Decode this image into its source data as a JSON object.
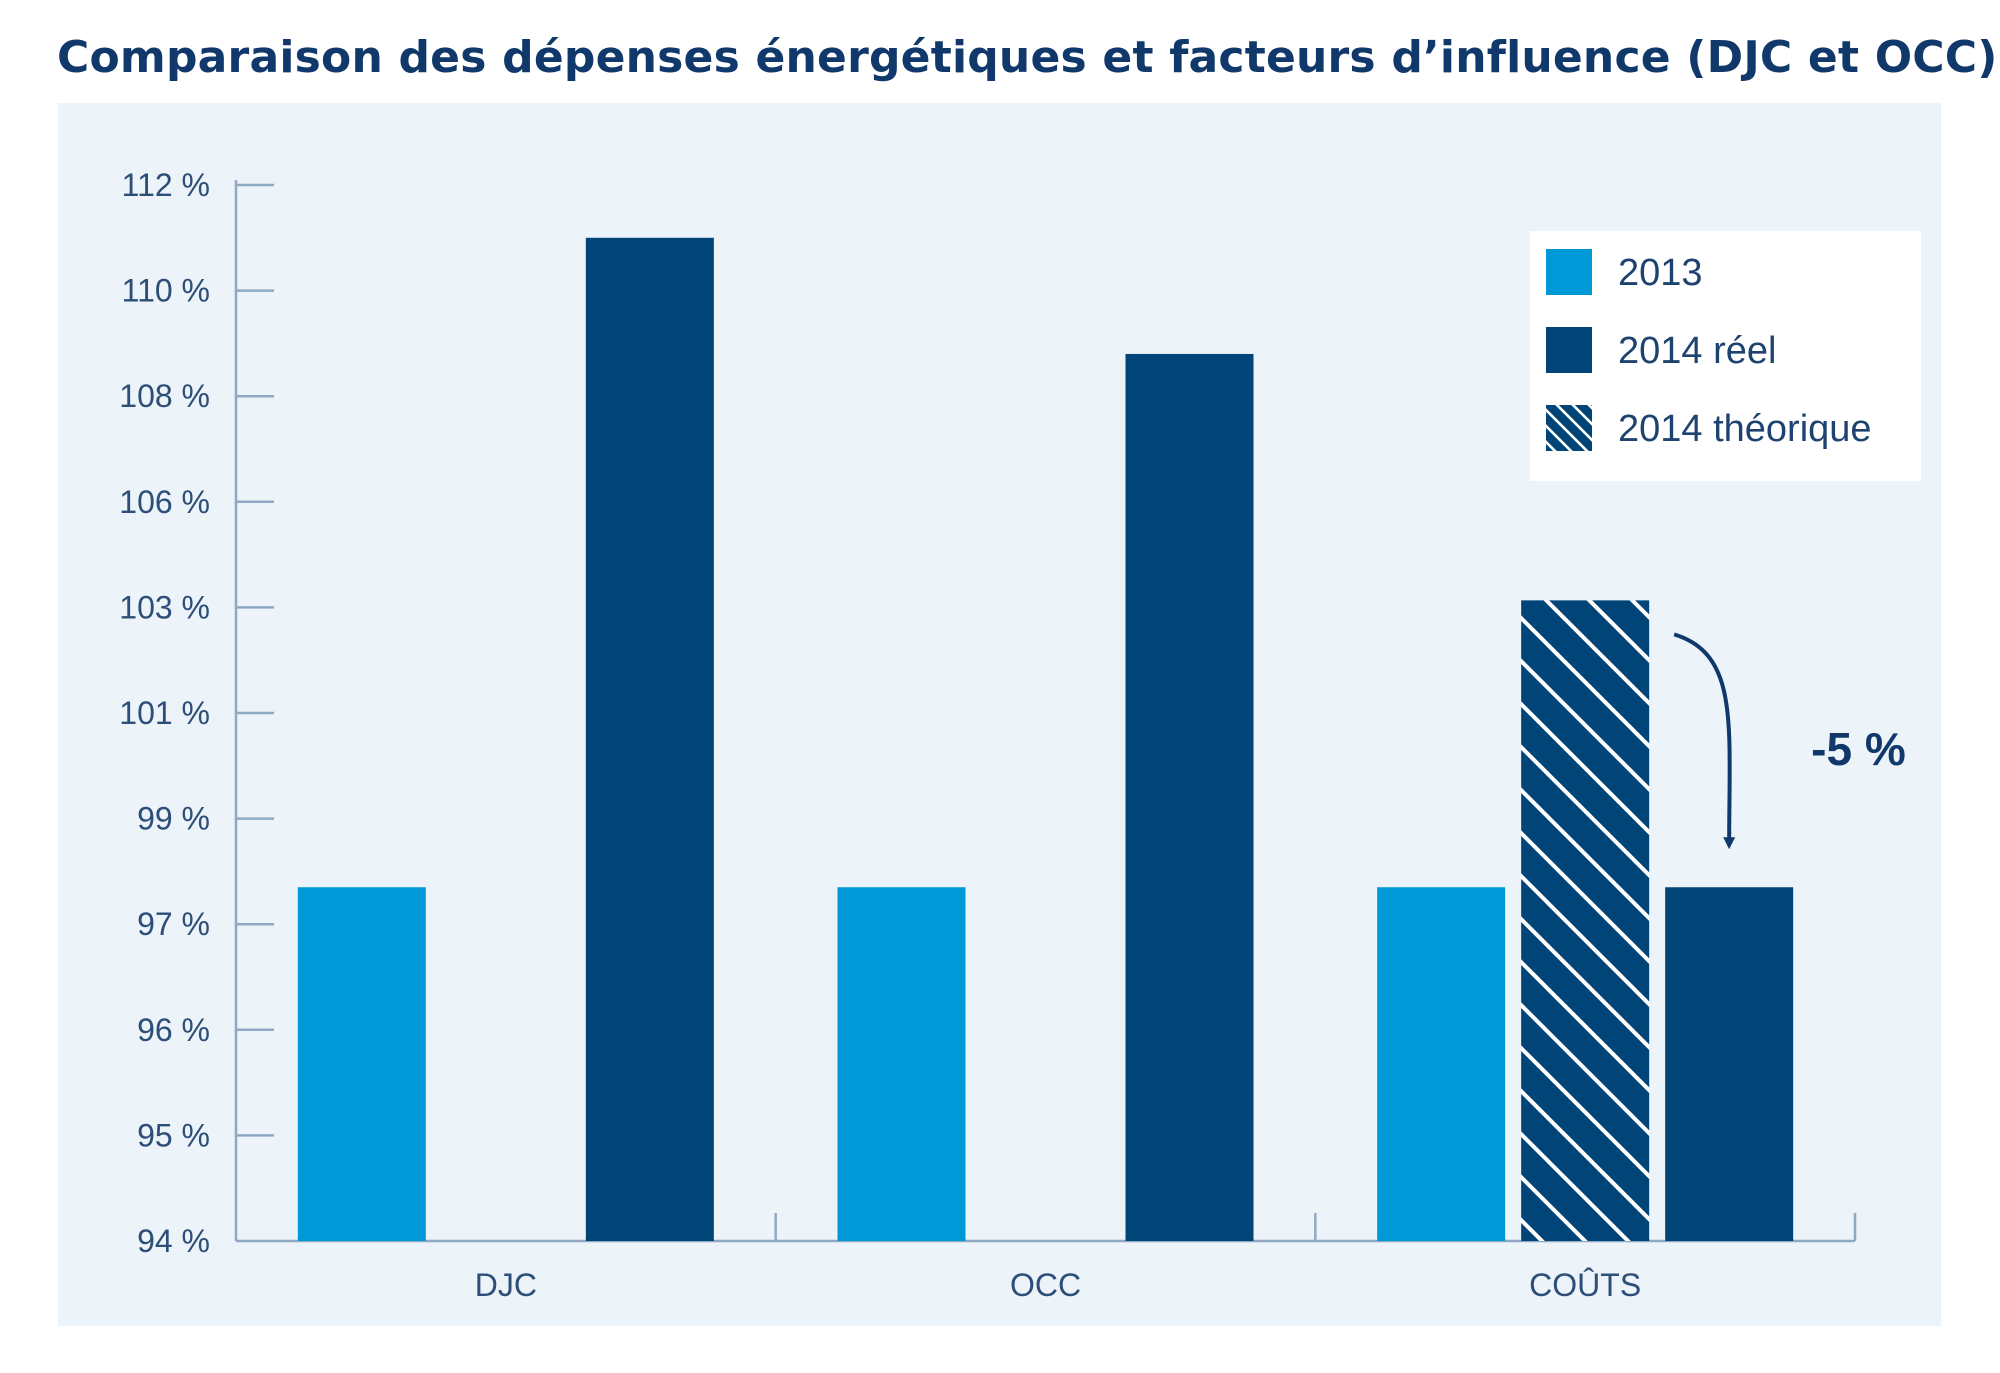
{
  "chart_data": {
    "type": "bar",
    "title": "Comparaison des dépenses énergétiques et facteurs d’influence (DJC et OCC)",
    "categories": [
      "DJC",
      "OCC",
      "COÛTS"
    ],
    "y_ticks": [
      {
        "label": "94 %",
        "value": 94
      },
      {
        "label": "95 %",
        "value": 95
      },
      {
        "label": "96 %",
        "value": 96
      },
      {
        "label": "97 %",
        "value": 97
      },
      {
        "label": "99 %",
        "value": 99
      },
      {
        "label": "101 %",
        "value": 101
      },
      {
        "label": "103 %",
        "value": 103
      },
      {
        "label": "106 %",
        "value": 106
      },
      {
        "label": "108 %",
        "value": 108
      },
      {
        "label": "110 %",
        "value": 110
      },
      {
        "label": "112 %",
        "value": 112
      }
    ],
    "series": [
      {
        "name": "2013",
        "color": "#0099d8",
        "pattern": "solid",
        "values": [
          97.7,
          97.7,
          97.7
        ]
      },
      {
        "name": "2014 théorique",
        "color": "#004478",
        "pattern": "hatched",
        "values": [
          null,
          null,
          103.2
        ]
      },
      {
        "name": "2014 réel",
        "color": "#004478",
        "pattern": "solid",
        "values": [
          111,
          108.8,
          97.7
        ]
      }
    ],
    "legend": {
      "position": "top-right",
      "order": [
        "2013",
        "2014 réel",
        "2014 théorique"
      ]
    },
    "annotations": [
      {
        "text": "-5 %",
        "category": "COÛTS",
        "from_series": "2014 théorique",
        "to_series": "2014 réel"
      }
    ],
    "grid": false,
    "colors": {
      "axis": "#8fa9c4",
      "tick_label": "#2d4e78",
      "panel_background": "#ecf3f9",
      "title": "#11386b"
    }
  }
}
